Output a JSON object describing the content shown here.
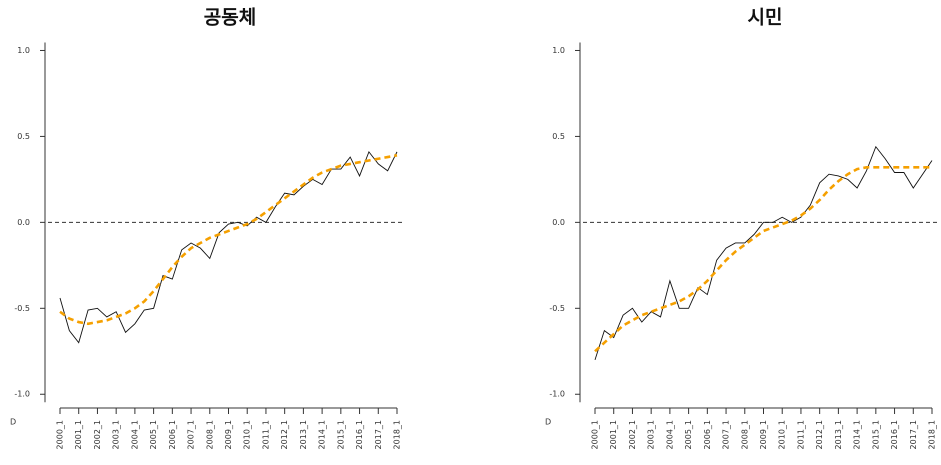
{
  "chart_data": [
    {
      "type": "line",
      "title": "공동체",
      "corner_label": "D",
      "categories": [
        "2000_1",
        null,
        "2001_1",
        null,
        "2002_1",
        null,
        "2003_1",
        null,
        "2004_1",
        null,
        "2005_1",
        null,
        "2006_1",
        null,
        "2007_1",
        null,
        "2008_1",
        null,
        "2009_1",
        null,
        "2010_1",
        null,
        "2011_1",
        null,
        "2012_1",
        null,
        "2013_1",
        null,
        "2014_1",
        null,
        "2015_1",
        null,
        "2016_1",
        null,
        "2017_1",
        null,
        "2018_1"
      ],
      "series": [
        {
          "color": "#111111",
          "dashed": false,
          "values": [
            -0.44,
            -0.63,
            -0.7,
            -0.51,
            -0.5,
            -0.55,
            -0.52,
            -0.64,
            -0.59,
            -0.51,
            -0.5,
            -0.31,
            -0.33,
            -0.16,
            -0.12,
            -0.15,
            -0.21,
            -0.06,
            -0.01,
            0.0,
            -0.02,
            0.03,
            0.0,
            0.09,
            0.17,
            0.16,
            0.21,
            0.25,
            0.22,
            0.31,
            0.31,
            0.38,
            0.27,
            0.41,
            0.34,
            0.3,
            0.41
          ]
        },
        {
          "color": "#f5a000",
          "dashed": true,
          "values": [
            -0.52,
            -0.56,
            -0.58,
            -0.59,
            -0.58,
            -0.57,
            -0.55,
            -0.53,
            -0.5,
            -0.46,
            -0.4,
            -0.33,
            -0.26,
            -0.2,
            -0.15,
            -0.12,
            -0.09,
            -0.07,
            -0.05,
            -0.03,
            -0.01,
            0.02,
            0.06,
            0.1,
            0.14,
            0.18,
            0.22,
            0.26,
            0.29,
            0.31,
            0.33,
            0.34,
            0.35,
            0.36,
            0.37,
            0.38,
            0.39
          ]
        }
      ],
      "ylim": [
        -1.08,
        1.09
      ],
      "yticks": [
        {
          "value": -1.0,
          "label": "-1.0"
        },
        {
          "value": -0.5,
          "label": "-0.5"
        },
        {
          "value": 0.0,
          "label": "0.0"
        },
        {
          "value": 0.5,
          "label": "0.5"
        },
        {
          "value": 1.0,
          "label": "1.0"
        }
      ],
      "hline": 0
    },
    {
      "type": "line",
      "title": "시민",
      "corner_label": "D",
      "categories": [
        "2000_1",
        null,
        "2001_1",
        null,
        "2002_1",
        null,
        "2003_1",
        null,
        "2004_1",
        null,
        "2005_1",
        null,
        "2006_1",
        null,
        "2007_1",
        null,
        "2008_1",
        null,
        "2009_1",
        null,
        "2010_1",
        null,
        "2011_1",
        null,
        "2012_1",
        null,
        "2013_1",
        null,
        "2014_1",
        null,
        "2015_1",
        null,
        "2016_1",
        null,
        "2017_1",
        null,
        "2018_1"
      ],
      "series": [
        {
          "color": "#111111",
          "dashed": false,
          "values": [
            -0.8,
            -0.63,
            -0.67,
            -0.54,
            -0.5,
            -0.58,
            -0.52,
            -0.55,
            -0.34,
            -0.5,
            -0.5,
            -0.38,
            -0.42,
            -0.22,
            -0.15,
            -0.12,
            -0.12,
            -0.07,
            0.0,
            0.0,
            0.03,
            0.0,
            0.03,
            0.1,
            0.23,
            0.28,
            0.27,
            0.25,
            0.2,
            0.3,
            0.44,
            0.37,
            0.29,
            0.29,
            0.2,
            0.28,
            0.36
          ]
        },
        {
          "color": "#f5a000",
          "dashed": true,
          "values": [
            -0.75,
            -0.7,
            -0.65,
            -0.6,
            -0.57,
            -0.54,
            -0.52,
            -0.5,
            -0.48,
            -0.46,
            -0.43,
            -0.39,
            -0.34,
            -0.28,
            -0.22,
            -0.17,
            -0.13,
            -0.09,
            -0.05,
            -0.03,
            -0.01,
            0.01,
            0.04,
            0.08,
            0.13,
            0.19,
            0.24,
            0.28,
            0.31,
            0.32,
            0.32,
            0.32,
            0.32,
            0.32,
            0.32,
            0.32,
            0.32
          ]
        }
      ],
      "ylim": [
        -1.08,
        1.09
      ],
      "yticks": [
        {
          "value": -1.0,
          "label": "-1.0"
        },
        {
          "value": -0.5,
          "label": "-0.5"
        },
        {
          "value": 0.0,
          "label": "0.0"
        },
        {
          "value": 0.5,
          "label": "0.5"
        },
        {
          "value": 1.0,
          "label": "1.0"
        }
      ],
      "hline": 0
    }
  ]
}
